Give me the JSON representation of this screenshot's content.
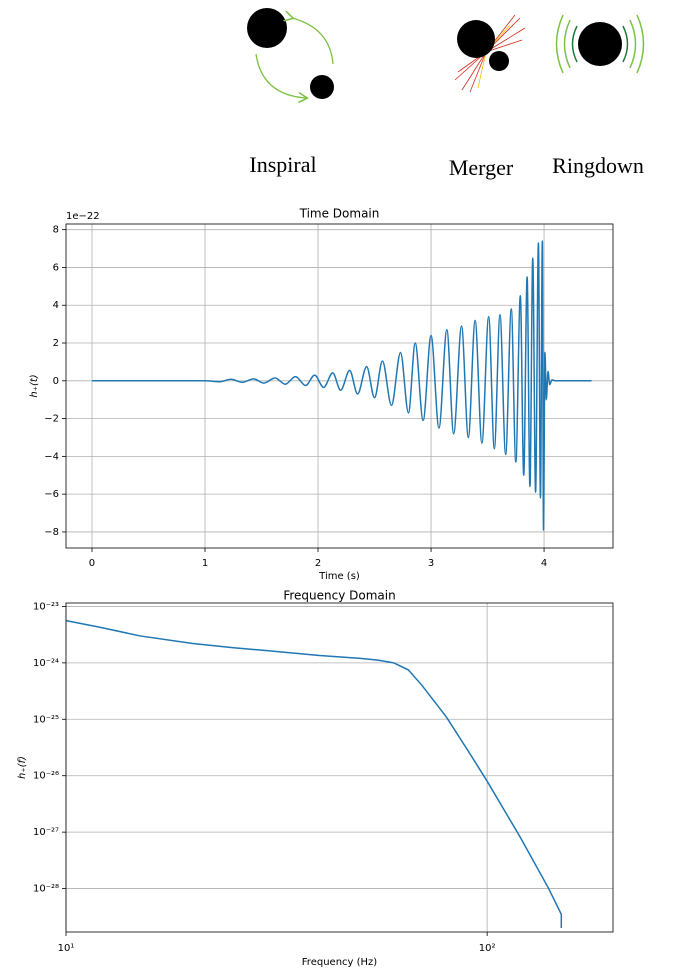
{
  "illustration": {
    "labels": [
      "Inspiral",
      "Merger",
      "Ringdown"
    ]
  },
  "chart_data": [
    {
      "type": "line",
      "title": "Time Domain",
      "x_label": "Time (s)",
      "y_label": "h₊(t)",
      "offset_label": "1e−22",
      "color": "#1f77b4",
      "grid": true,
      "xlim": [
        -0.23,
        4.61
      ],
      "ylim": [
        -8.85,
        8.3
      ],
      "xticks": [
        0,
        1,
        2,
        3,
        4
      ],
      "yticks": [
        {
          "value": -8,
          "label": "−8"
        },
        {
          "value": -6,
          "label": "−6"
        },
        {
          "value": -4,
          "label": "−4"
        },
        {
          "value": -2,
          "label": "−2"
        },
        0,
        2,
        4,
        6,
        8
      ],
      "x": [
        0,
        1.0,
        1.13,
        1.23,
        1.33,
        1.43,
        1.52,
        1.62,
        1.71,
        1.8,
        1.89,
        1.97,
        2.05,
        2.13,
        2.2,
        2.28,
        2.35,
        2.43,
        2.5,
        2.57,
        2.65,
        2.73,
        2.8,
        2.86,
        2.93,
        3.0,
        3.07,
        3.14,
        3.2,
        3.27,
        3.33,
        3.39,
        3.45,
        3.51,
        3.56,
        3.61,
        3.66,
        3.71,
        3.75,
        3.79,
        3.82,
        3.85,
        3.875,
        3.9,
        3.925,
        3.95,
        3.968,
        3.985,
        3.995,
        4.008,
        4.02,
        4.035,
        4.05,
        4.07,
        4.1,
        4.42
      ],
      "values": [
        0,
        0,
        -0.05,
        0.08,
        -0.08,
        0.1,
        -0.12,
        0.15,
        -0.18,
        0.22,
        -0.25,
        0.3,
        -0.35,
        0.42,
        -0.5,
        0.55,
        -0.7,
        0.75,
        -0.9,
        1.05,
        -1.3,
        1.5,
        -1.7,
        2.0,
        -2.1,
        2.4,
        -2.5,
        2.7,
        -2.8,
        2.9,
        -3.0,
        3.2,
        -3.3,
        3.4,
        -3.6,
        3.5,
        -3.9,
        3.8,
        -4.3,
        4.5,
        -5.0,
        5.5,
        -5.6,
        6.5,
        -5.9,
        7.3,
        -6.2,
        7.4,
        -7.9,
        1.5,
        -1.0,
        0.5,
        -0.2,
        0.05,
        0,
        0
      ]
    },
    {
      "type": "line",
      "title": "Frequency Domain",
      "x_label": "Frequency (Hz)",
      "y_label": "h₊(f)",
      "color": "#1f77b4",
      "grid": true,
      "xlog": true,
      "ylog": true,
      "xlim": [
        10,
        199
      ],
      "ylim": [
        1.7e-29,
        1.15e-23
      ],
      "xticks": [
        {
          "value": 10,
          "label": "10¹"
        },
        {
          "value": 100,
          "label": "10²"
        }
      ],
      "yticks": [
        {
          "value": 1e-28,
          "label": "10⁻²⁸"
        },
        {
          "value": 1e-27,
          "label": "10⁻²⁷"
        },
        {
          "value": 1e-26,
          "label": "10⁻²⁶"
        },
        {
          "value": 1e-25,
          "label": "10⁻²⁵"
        },
        {
          "value": 1e-24,
          "label": "10⁻²⁴"
        },
        {
          "value": 1e-23,
          "label": "10⁻²³"
        }
      ],
      "x": [
        10,
        12,
        15,
        20,
        25,
        30,
        40,
        50,
        55,
        60,
        65,
        70,
        80,
        90,
        100,
        120,
        140,
        150,
        150
      ],
      "values": [
        5.6e-24,
        4.3e-24,
        3e-24,
        2.2e-24,
        1.85e-24,
        1.65e-24,
        1.35e-24,
        1.2e-24,
        1.12e-24,
        1e-24,
        7.5e-25,
        4e-25,
        1.1e-25,
        2.8e-26,
        8e-27,
        8e-28,
        1e-28,
        3.5e-29,
        2e-29
      ]
    }
  ]
}
